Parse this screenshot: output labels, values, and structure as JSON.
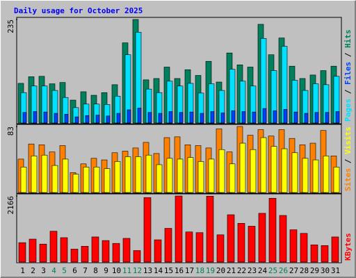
{
  "title": "Daily usage for October 2025",
  "legend_separator": " / ",
  "chart_data": [
    {
      "type": "bar",
      "ylim": [
        0,
        235
      ],
      "yticks": [
        235
      ],
      "series": [
        {
          "name": "Hits",
          "color": "#00805c",
          "values": [
            90,
            105,
            106,
            89,
            92,
            52,
            71,
            63,
            69,
            87,
            182,
            235,
            98,
            101,
            127,
            101,
            121,
            108,
            140,
            93,
            159,
            132,
            127,
            224,
            155,
            193,
            129,
            101,
            109,
            119,
            129
          ]
        },
        {
          "name": "Files",
          "color": "#0040ff",
          "values": [
            24,
            26,
            25,
            22,
            20,
            14,
            17,
            18,
            16,
            22,
            30,
            34,
            24,
            22,
            26,
            24,
            25,
            22,
            26,
            23,
            28,
            26,
            25,
            33,
            28,
            31,
            25,
            22,
            24,
            24,
            26
          ]
        },
        {
          "name": "Pages",
          "color": "#00e0ff",
          "values": [
            69,
            84,
            84,
            74,
            58,
            35,
            43,
            43,
            42,
            61,
            155,
            206,
            77,
            69,
            95,
            84,
            90,
            68,
            89,
            74,
            122,
            95,
            84,
            192,
            119,
            174,
            97,
            74,
            89,
            87,
            106
          ]
        }
      ]
    },
    {
      "type": "bar",
      "ylim": [
        0,
        83
      ],
      "yticks": [
        83
      ],
      "series": [
        {
          "name": "Visits",
          "color": "#ffff00",
          "values": [
            32,
            46,
            47,
            34,
            42,
            23,
            32,
            32,
            30,
            39,
            45,
            45,
            47,
            35,
            43,
            42,
            44,
            39,
            42,
            54,
            36,
            62,
            54,
            69,
            58,
            55,
            50,
            43,
            41,
            46,
            32
          ]
        },
        {
          "name": "Sites",
          "color": "#ff8000",
          "values": [
            42,
            61,
            60,
            51,
            59,
            25,
            36,
            43,
            41,
            50,
            52,
            56,
            63,
            49,
            69,
            70,
            60,
            59,
            56,
            80,
            51,
            83,
            72,
            79,
            71,
            79,
            68,
            60,
            62,
            78,
            46
          ]
        }
      ]
    },
    {
      "type": "bar",
      "ylim": [
        0,
        2166
      ],
      "yticks": [
        2166
      ],
      "categories": [
        "1",
        "2",
        "3",
        "4",
        "5",
        "6",
        "7",
        "8",
        "9",
        "10",
        "11",
        "12",
        "13",
        "14",
        "15",
        "16",
        "17",
        "18",
        "19",
        "20",
        "21",
        "22",
        "23",
        "24",
        "25",
        "26",
        "27",
        "28",
        "29",
        "30",
        "31"
      ],
      "x_label_colors": [
        "#000000",
        "#000000",
        "#000000",
        "#00805c",
        "#00805c",
        "#000000",
        "#000000",
        "#000000",
        "#000000",
        "#000000",
        "#00805c",
        "#00805c",
        "#000000",
        "#000000",
        "#000000",
        "#000000",
        "#000000",
        "#00805c",
        "#00805c",
        "#000000",
        "#000000",
        "#000000",
        "#000000",
        "#000000",
        "#00805c",
        "#00805c",
        "#000000",
        "#000000",
        "#000000",
        "#000000",
        "#000000"
      ],
      "series": [
        {
          "name": "KBytes",
          "color": "#ff0000",
          "values": [
            635,
            752,
            588,
            1011,
            799,
            423,
            517,
            823,
            705,
            611,
            776,
            376,
            2115,
            729,
            1105,
            2166,
            987,
            964,
            2160,
            893,
            1551,
            1269,
            1175,
            1598,
            2092,
            1528,
            1058,
            940,
            564,
            541,
            823
          ]
        }
      ]
    }
  ]
}
